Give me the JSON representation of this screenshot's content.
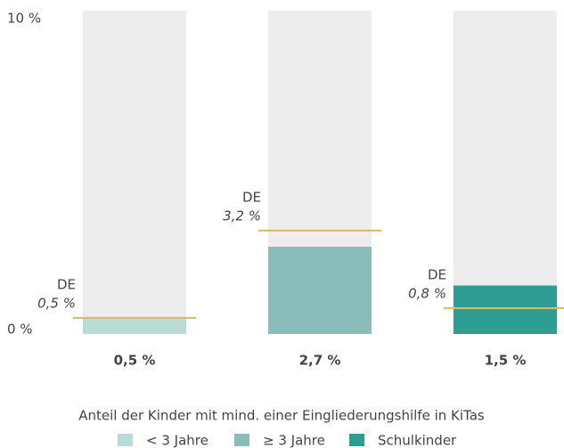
{
  "chart_data": {
    "type": "bar",
    "categories": [
      "< 3 Jahre",
      "≥ 3 Jahre",
      "Schulkinder"
    ],
    "values": [
      0.5,
      2.7,
      1.5
    ],
    "value_labels": [
      "0,5 %",
      "2,7 %",
      "1,5 %"
    ],
    "colors": [
      "#b9dbd6",
      "#8abdb9",
      "#2e9e95"
    ],
    "reference": {
      "name": "DE",
      "color": "#d9b86e",
      "values": [
        0.5,
        3.2,
        0.8
      ],
      "value_labels": [
        "0,5 %",
        "3,2 %",
        "0,8 %"
      ]
    },
    "xlabel": "Anteil der Kinder mit mind. einer Eingliederungshilfe in KiTas",
    "ylim": [
      0,
      10
    ],
    "yticks": [
      {
        "value": 0,
        "label": "0 %"
      },
      {
        "value": 10,
        "label": "10 %"
      }
    ],
    "grid": false
  }
}
